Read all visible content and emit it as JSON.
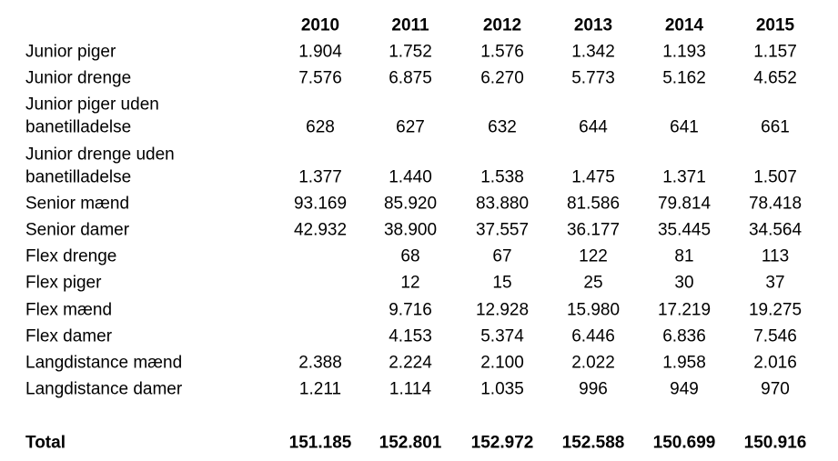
{
  "table": {
    "header": [
      "2010",
      "2011",
      "2012",
      "2013",
      "2014",
      "2015"
    ],
    "rows": [
      {
        "label": [
          "Junior piger"
        ],
        "values": [
          "1.904",
          "1.752",
          "1.576",
          "1.342",
          "1.193",
          "1.157"
        ]
      },
      {
        "label": [
          "Junior drenge"
        ],
        "values": [
          "7.576",
          "6.875",
          "6.270",
          "5.773",
          "5.162",
          "4.652"
        ]
      },
      {
        "label": [
          "Junior piger uden",
          "banetilladelse"
        ],
        "values": [
          "628",
          "627",
          "632",
          "644",
          "641",
          "661"
        ]
      },
      {
        "label": [
          "Junior drenge uden",
          "banetilladelse"
        ],
        "values": [
          "1.377",
          "1.440",
          "1.538",
          "1.475",
          "1.371",
          "1.507"
        ]
      },
      {
        "label": [
          "Senior mænd"
        ],
        "values": [
          "93.169",
          "85.920",
          "83.880",
          "81.586",
          "79.814",
          "78.418"
        ]
      },
      {
        "label": [
          "Senior damer"
        ],
        "values": [
          "42.932",
          "38.900",
          "37.557",
          "36.177",
          "35.445",
          "34.564"
        ]
      },
      {
        "label": [
          "Flex drenge"
        ],
        "values": [
          null,
          "68",
          "67",
          "122",
          "81",
          "113"
        ]
      },
      {
        "label": [
          "Flex piger"
        ],
        "values": [
          null,
          "12",
          "15",
          "25",
          "30",
          "37"
        ]
      },
      {
        "label": [
          "Flex mænd"
        ],
        "values": [
          null,
          "9.716",
          "12.928",
          "15.980",
          "17.219",
          "19.275"
        ]
      },
      {
        "label": [
          "Flex damer"
        ],
        "values": [
          null,
          "4.153",
          "5.374",
          "6.446",
          "6.836",
          "7.546"
        ]
      },
      {
        "label": [
          "Langdistance mænd"
        ],
        "values": [
          "2.388",
          "2.224",
          "2.100",
          "2.022",
          "1.958",
          "2.016"
        ]
      },
      {
        "label": [
          "Langdistance damer"
        ],
        "values": [
          "1.211",
          "1.114",
          "1.035",
          "996",
          "949",
          "970"
        ]
      }
    ],
    "total": {
      "label": "Total",
      "values": [
        "151.185",
        "152.801",
        "152.972",
        "152.588",
        "150.699",
        "150.916"
      ]
    }
  }
}
